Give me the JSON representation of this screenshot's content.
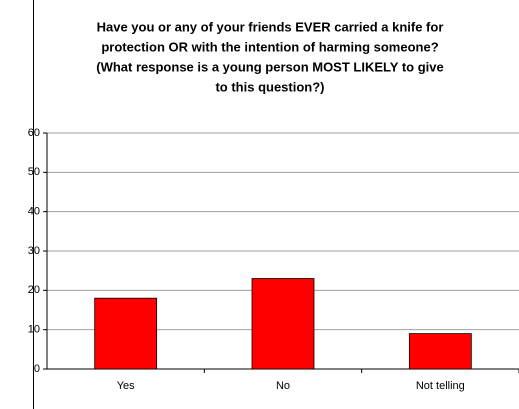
{
  "chart_data": {
    "type": "bar",
    "title": [
      "Have you or any of your friends EVER carried a knife for",
      "protection OR with the intention of harming someone?",
      "(What response is a young person MOST LIKELY to give",
      "to this question?)"
    ],
    "categories": [
      "Yes",
      "No",
      "Not telling"
    ],
    "values": [
      18,
      23,
      9
    ],
    "color": "#ff0000",
    "ylim": [
      0,
      60
    ],
    "yticks": [
      0,
      10,
      20,
      30,
      40,
      50,
      60
    ],
    "grid": true
  }
}
